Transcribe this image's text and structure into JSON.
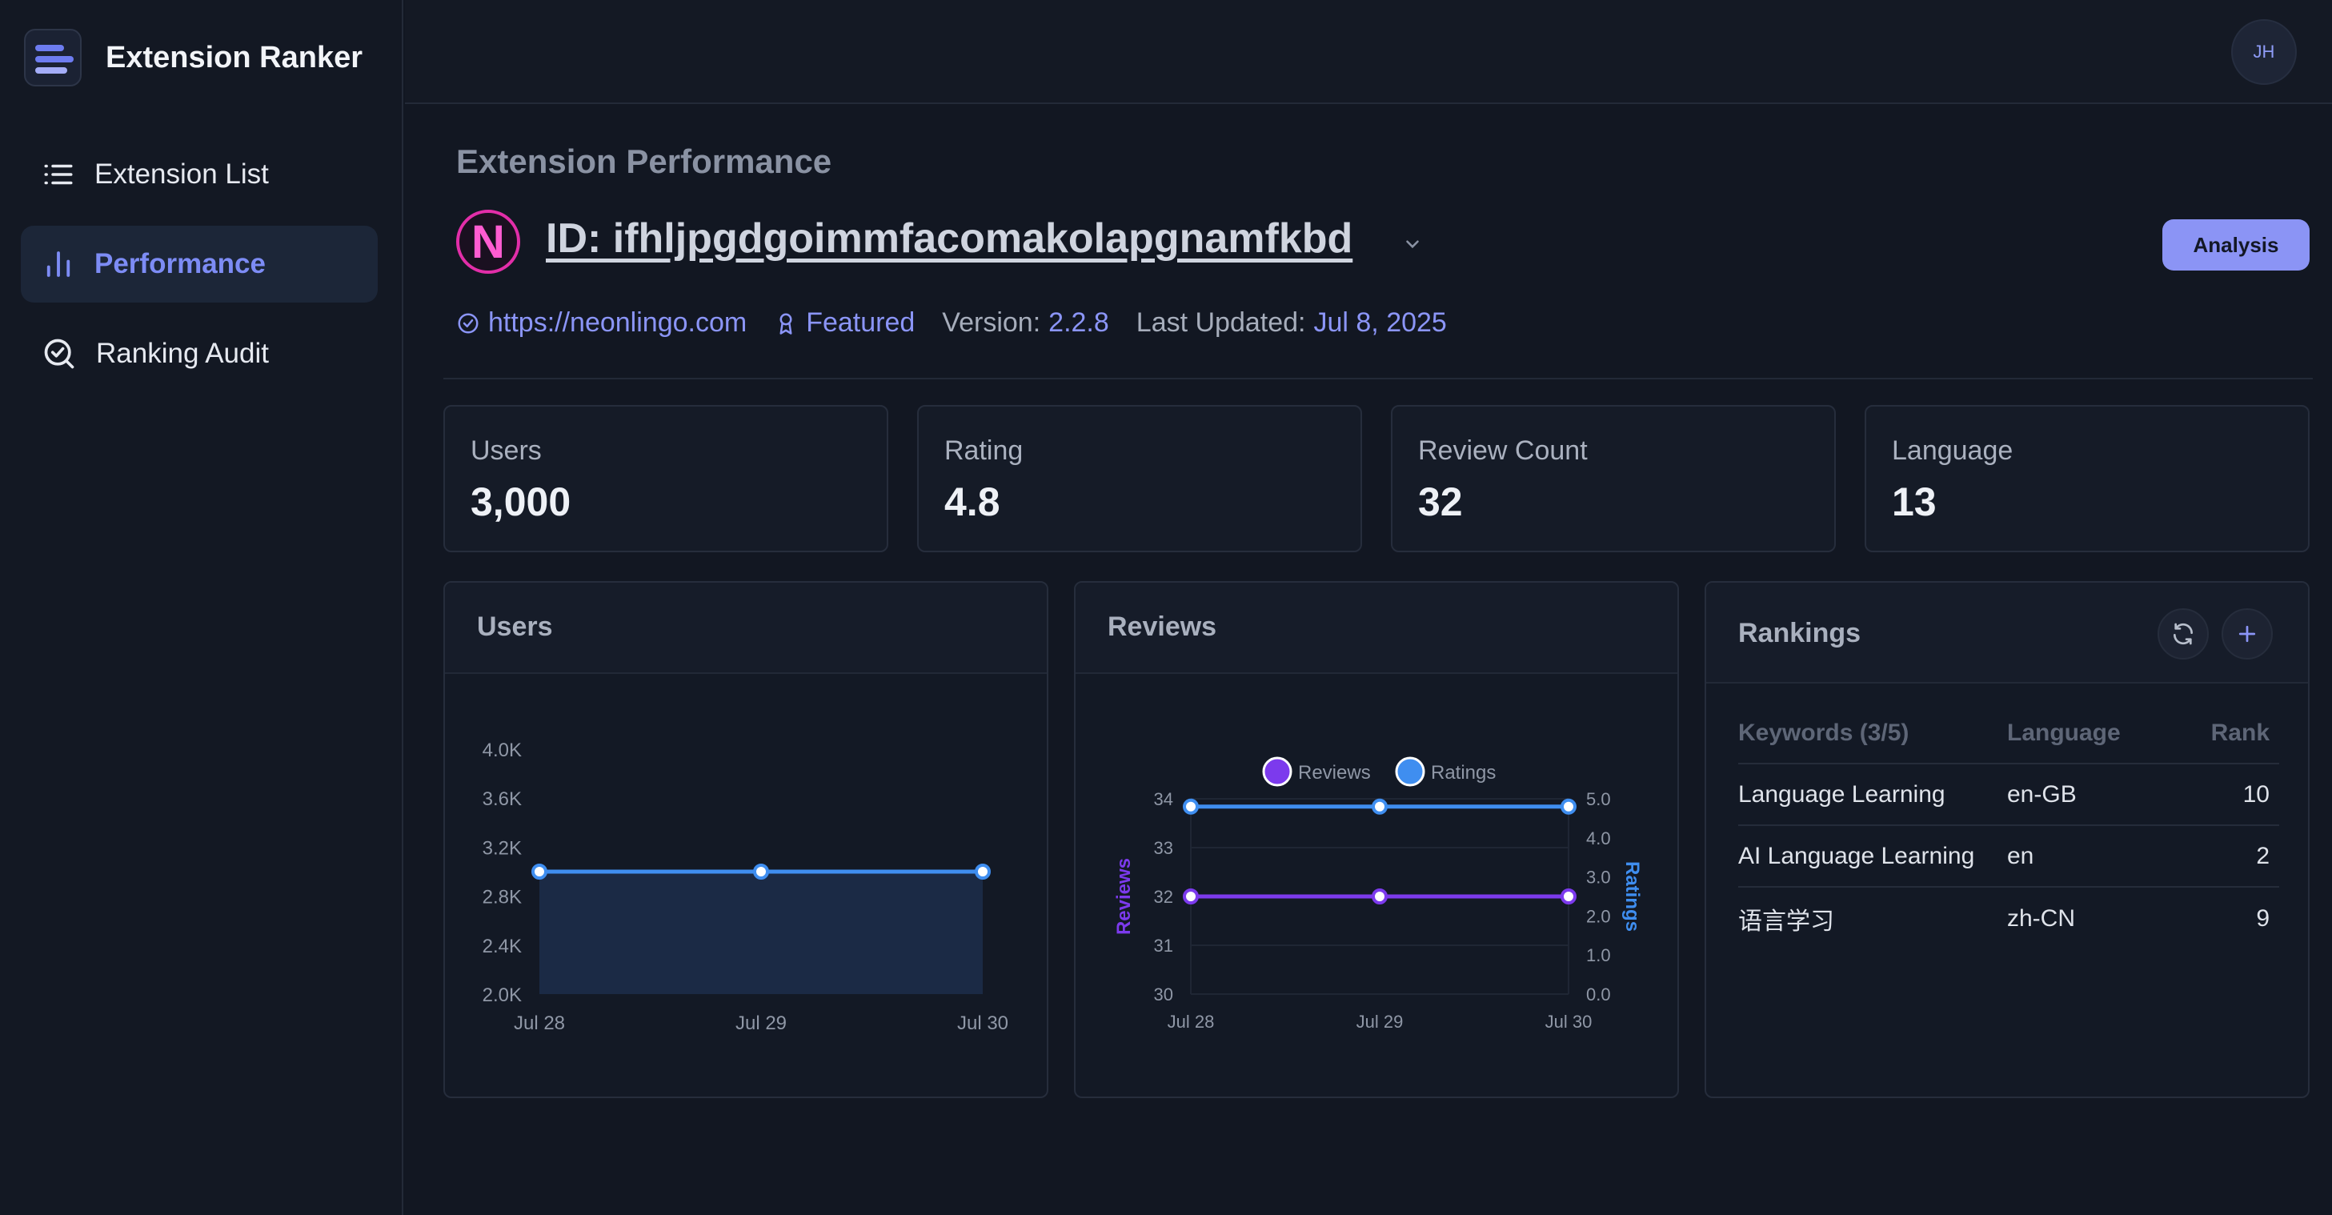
{
  "app": {
    "name": "Extension Ranker"
  },
  "sidebar": {
    "items": [
      {
        "label": "Extension List",
        "icon": "list-icon",
        "active": false
      },
      {
        "label": "Performance",
        "icon": "bar-chart-icon",
        "active": true
      },
      {
        "label": "Ranking Audit",
        "icon": "search-check-icon",
        "active": false
      }
    ]
  },
  "user": {
    "initials": "JH"
  },
  "extension": {
    "section_title": "Extension Performance",
    "logo_letter": "N",
    "id_label": "ID: ifhljpgdgoimmfacomakolapgnamfkbd",
    "website": "https://neonlingo.com",
    "badge": "Featured",
    "version_label": "Version:",
    "version": "2.2.8",
    "updated_label": "Last Updated:",
    "updated": "Jul 8, 2025",
    "analysis_button": "Analysis"
  },
  "stats": [
    {
      "label": "Users",
      "value": "3,000"
    },
    {
      "label": "Rating",
      "value": "4.8"
    },
    {
      "label": "Review Count",
      "value": "32"
    },
    {
      "label": "Language",
      "value": "13"
    }
  ],
  "users_card": {
    "title": "Users"
  },
  "reviews_card": {
    "title": "Reviews"
  },
  "rankings": {
    "title": "Rankings",
    "headers": [
      "Keywords (3/5)",
      "Language",
      "Rank"
    ],
    "rows": [
      {
        "keyword": "Language Learning",
        "language": "en-GB",
        "rank": "10"
      },
      {
        "keyword": "AI Language Learning",
        "language": "en",
        "rank": "2"
      },
      {
        "keyword": "语言学习",
        "language": "zh-CN",
        "rank": "9"
      }
    ]
  },
  "chart_data": [
    {
      "type": "area",
      "categories": [
        "Jul 28",
        "Jul 29",
        "Jul 30"
      ],
      "series": [
        {
          "values": [
            3000,
            3000,
            3000
          ]
        }
      ],
      "ylim": [
        2000,
        4000
      ],
      "yticks": [
        2000,
        2400,
        2800,
        3200,
        3600,
        4000
      ],
      "ytick_labels": [
        "2.0K",
        "2.4K",
        "2.8K",
        "3.2K",
        "3.6K",
        "4.0K"
      ],
      "colors": {
        "line": "#3f8ef0",
        "fill": "#1b2a45"
      }
    },
    {
      "type": "line",
      "categories": [
        "Jul 28",
        "Jul 29",
        "Jul 30"
      ],
      "series": [
        {
          "name": "Reviews",
          "values": [
            32,
            32,
            32
          ],
          "axis": "left",
          "color": "#7c3aed"
        },
        {
          "name": "Ratings",
          "values": [
            4.8,
            4.8,
            4.8
          ],
          "axis": "right",
          "color": "#3f8ef0"
        }
      ],
      "ylabel": "Reviews",
      "y2label": "Ratings",
      "ylim": [
        30,
        34
      ],
      "y2lim": [
        0,
        5
      ],
      "yticks": [
        "30",
        "31",
        "32",
        "33",
        "34"
      ],
      "y2ticks": [
        "0.0",
        "1.0",
        "2.0",
        "3.0",
        "4.0",
        "5.0"
      ],
      "legend": "top"
    }
  ]
}
